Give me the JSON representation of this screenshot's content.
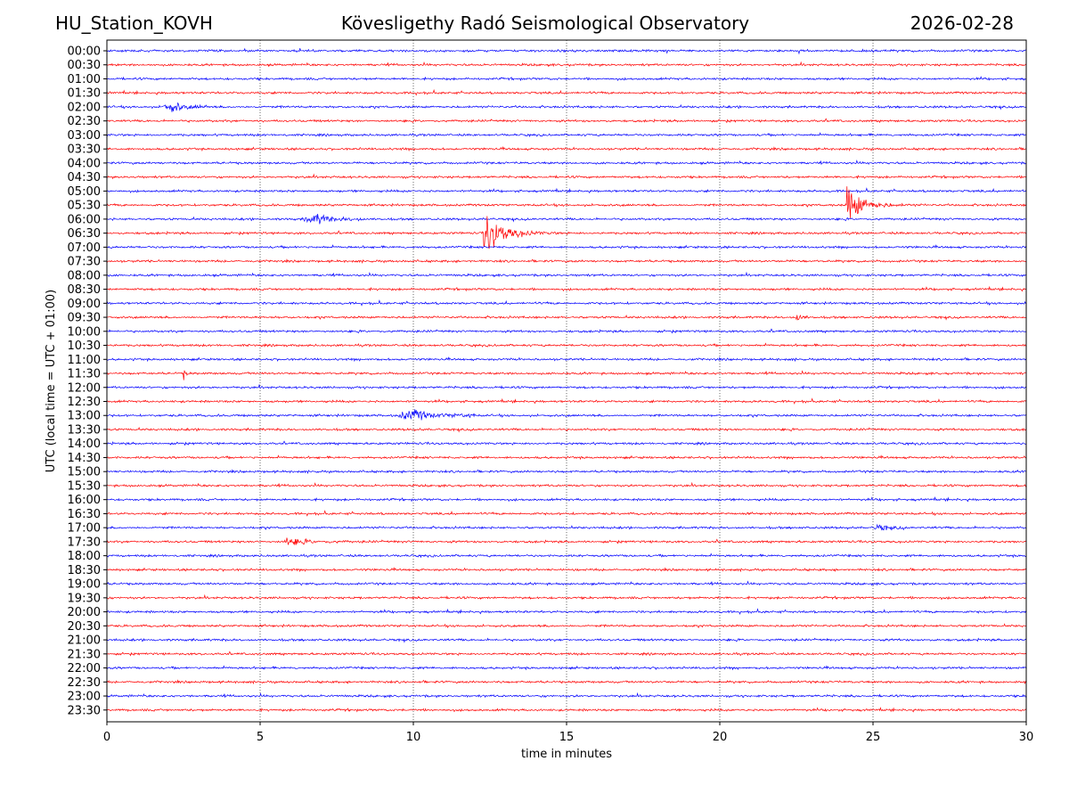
{
  "header": {
    "station": "HU_Station_KOVH",
    "observatory": "Kövesligethy Radó Seismological Observatory",
    "date": "2026-02-28"
  },
  "chart_data": {
    "type": "line",
    "title": "Kövesligethy Radó Seismological Observatory",
    "xlabel": "time in minutes",
    "ylabel": "UTC (local time = UTC + 01:00)",
    "xlim": [
      0,
      30
    ],
    "x_ticks": [
      0,
      5,
      10,
      15,
      20,
      25,
      30
    ],
    "x_gridlines": [
      5,
      10,
      15,
      20,
      25
    ],
    "grid": "vertical dotted",
    "legend": "none",
    "trace_colors": [
      "#0000ff",
      "#ff0000"
    ],
    "row_labels": [
      "00:00",
      "00:30",
      "01:00",
      "01:30",
      "02:00",
      "02:30",
      "03:00",
      "03:30",
      "04:00",
      "04:30",
      "05:00",
      "05:30",
      "06:00",
      "06:30",
      "07:00",
      "07:30",
      "08:00",
      "08:30",
      "09:00",
      "09:30",
      "10:00",
      "10:30",
      "11:00",
      "11:30",
      "12:00",
      "12:30",
      "13:00",
      "13:30",
      "14:00",
      "14:30",
      "15:00",
      "15:30",
      "16:00",
      "16:30",
      "17:00",
      "17:30",
      "18:00",
      "18:30",
      "19:00",
      "19:30",
      "20:00",
      "20:30",
      "21:00",
      "21:30",
      "22:00",
      "22:30",
      "23:00",
      "23:30"
    ],
    "events": [
      {
        "row": "02:00",
        "onset_min": 1.8,
        "duration_min": 1.5,
        "amplitude": 0.35,
        "type": "emergent"
      },
      {
        "row": "05:30",
        "onset_min": 24.15,
        "duration_min": 2.5,
        "amplitude": 1.5,
        "type": "impulsive"
      },
      {
        "row": "06:00",
        "onset_min": 6.4,
        "duration_min": 2.0,
        "amplitude": 0.35,
        "type": "emergent"
      },
      {
        "row": "06:30",
        "onset_min": 12.3,
        "duration_min": 3.0,
        "amplitude": 1.6,
        "type": "impulsive"
      },
      {
        "row": "09:30",
        "onset_min": 22.5,
        "duration_min": 0.8,
        "amplitude": 0.45,
        "type": "impulsive"
      },
      {
        "row": "11:30",
        "onset_min": 2.5,
        "duration_min": 0.4,
        "amplitude": 0.35,
        "type": "impulsive"
      },
      {
        "row": "13:00",
        "onset_min": 9.5,
        "duration_min": 2.5,
        "amplitude": 0.35,
        "type": "emergent"
      },
      {
        "row": "17:00",
        "onset_min": 25.0,
        "duration_min": 1.0,
        "amplitude": 0.2,
        "type": "emergent"
      },
      {
        "row": "17:30",
        "onset_min": 5.8,
        "duration_min": 3.5,
        "amplitude": 0.3,
        "type": "impulsive"
      }
    ]
  }
}
